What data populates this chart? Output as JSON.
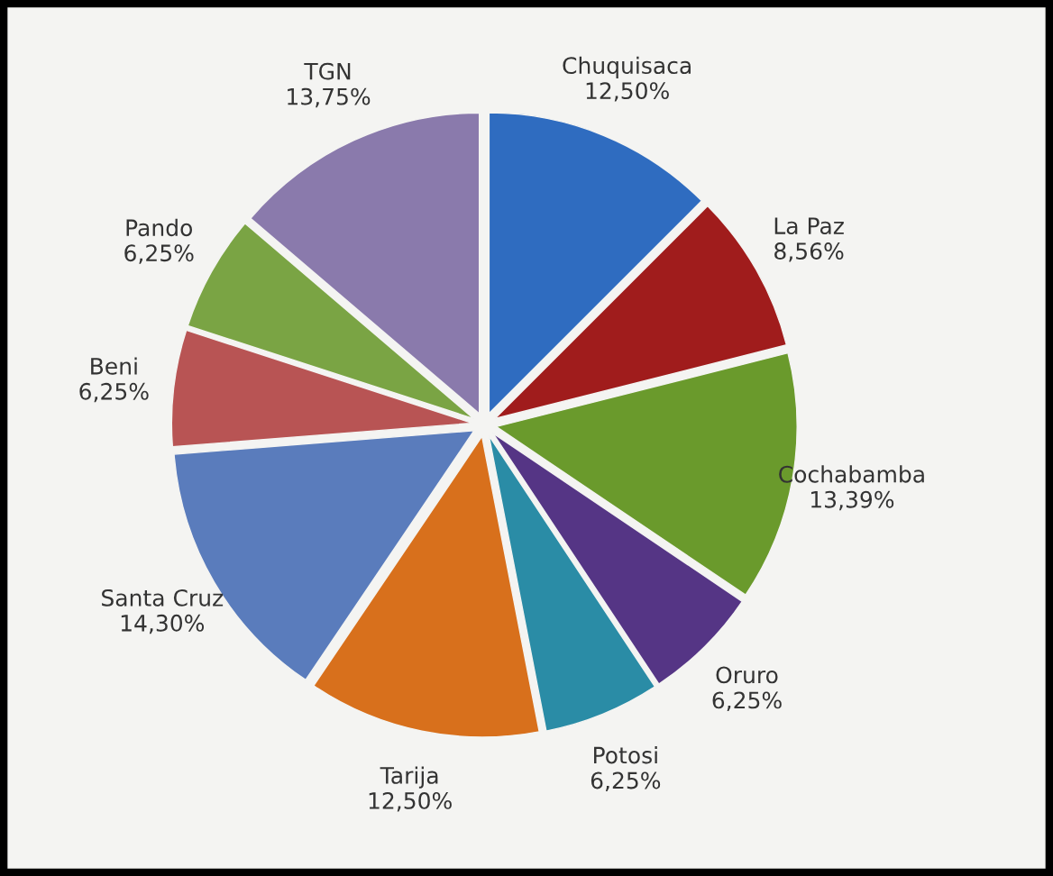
{
  "chart_data": {
    "type": "pie",
    "categories": [
      "Chuquisaca",
      "La Paz",
      "Cochabamba",
      "Oruro",
      "Potosi",
      "Tarija",
      "Santa Cruz",
      "Beni",
      "Pando",
      "TGN"
    ],
    "values": [
      12.5,
      8.56,
      13.39,
      6.25,
      6.25,
      12.5,
      14.3,
      6.25,
      6.25,
      13.75
    ],
    "value_labels": [
      "12,50%",
      "8,56%",
      "13,39%",
      "6,25%",
      "6,25%",
      "12,50%",
      "14,30%",
      "6,25%",
      "6,25%",
      "13,75%"
    ],
    "colors": [
      "#2f6cc0",
      "#a01c1c",
      "#6a9a2c",
      "#553585",
      "#2a8ca6",
      "#d8701c",
      "#5a7cbc",
      "#b85454",
      "#7aa444",
      "#8a7aac"
    ]
  }
}
